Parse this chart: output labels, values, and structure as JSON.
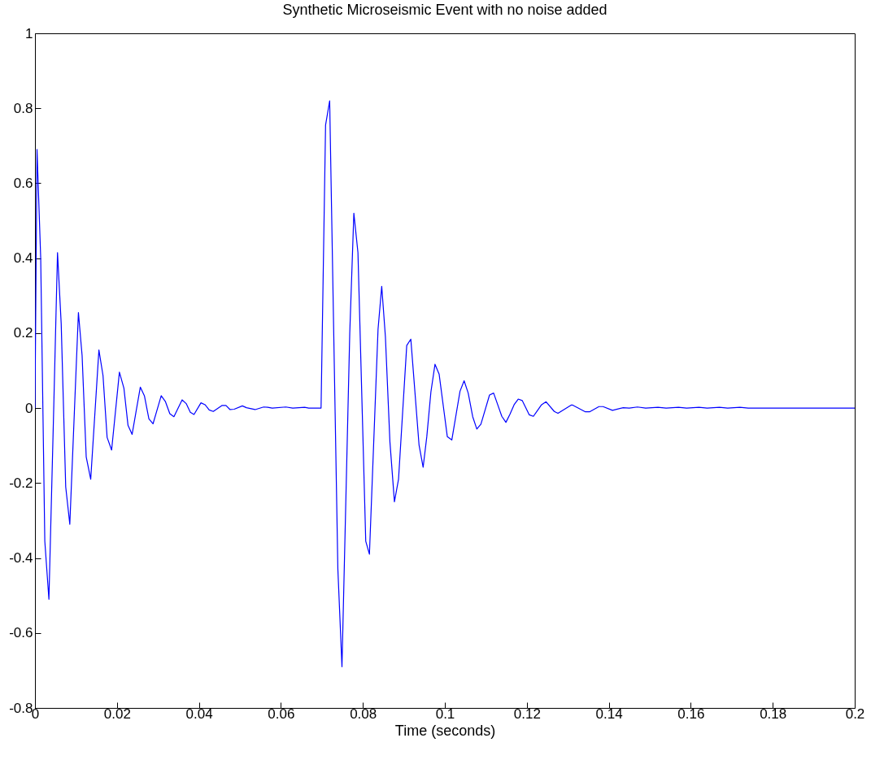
{
  "chart_data": {
    "type": "line",
    "title": "Synthetic Microseismic Event with no noise added",
    "xlabel": "Time (seconds)",
    "x": [
      0,
      0.0005,
      0.0014,
      0.0024,
      0.0034,
      0.0046,
      0.0055,
      0.0064,
      0.0075,
      0.0085,
      0.0106,
      0.0115,
      0.0125,
      0.0136,
      0.0156,
      0.0166,
      0.0176,
      0.0187,
      0.0206,
      0.0217,
      0.0227,
      0.0237,
      0.0257,
      0.0267,
      0.0278,
      0.0288,
      0.0308,
      0.0318,
      0.0329,
      0.0339,
      0.0359,
      0.0369,
      0.0379,
      0.0388,
      0.0405,
      0.0415,
      0.0425,
      0.0435,
      0.0456,
      0.0466,
      0.0476,
      0.0486,
      0.0506,
      0.0516,
      0.0537,
      0.0558,
      0.0568,
      0.0579,
      0.0612,
      0.0629,
      0.0658,
      0.0668,
      0.0698,
      0.0709,
      0.0719,
      0.0739,
      0.0749,
      0.0768,
      0.0778,
      0.0788,
      0.0807,
      0.0816,
      0.0837,
      0.0846,
      0.0855,
      0.0866,
      0.0877,
      0.0887,
      0.0907,
      0.0917,
      0.0937,
      0.0947,
      0.0956,
      0.0966,
      0.0976,
      0.0986,
      0.1006,
      0.1017,
      0.1037,
      0.1047,
      0.1057,
      0.1068,
      0.1078,
      0.1088,
      0.1109,
      0.1119,
      0.1139,
      0.1149,
      0.1159,
      0.1169,
      0.1179,
      0.1189,
      0.1206,
      0.1216,
      0.1236,
      0.1247,
      0.1267,
      0.1276,
      0.1308,
      0.1312,
      0.1343,
      0.1353,
      0.1376,
      0.1386,
      0.1409,
      0.1435,
      0.145,
      0.147,
      0.149,
      0.152,
      0.154,
      0.157,
      0.159,
      0.162,
      0.164,
      0.167,
      0.169,
      0.172,
      0.174,
      0.2
    ],
    "series": [
      {
        "color": "#0000ff",
        "values": [
          0,
          0.69,
          0.4,
          -0.355,
          -0.51,
          0.01,
          0.415,
          0.225,
          -0.21,
          -0.31,
          0.255,
          0.14,
          -0.13,
          -0.19,
          0.155,
          0.087,
          -0.078,
          -0.112,
          0.096,
          0.053,
          -0.046,
          -0.07,
          0.056,
          0.033,
          -0.029,
          -0.042,
          0.033,
          0.018,
          -0.015,
          -0.023,
          0.022,
          0.012,
          -0.011,
          -0.017,
          0.014,
          0.009,
          -0.005,
          -0.009,
          0.007,
          0.007,
          -0.004,
          -0.003,
          0.006,
          0.001,
          -0.004,
          0.003,
          0.002,
          0,
          0.003,
          0,
          0.002,
          0,
          0,
          0.755,
          0.82,
          -0.43,
          -0.69,
          0.2,
          0.52,
          0.415,
          -0.355,
          -0.39,
          0.21,
          0.325,
          0.19,
          -0.09,
          -0.25,
          -0.19,
          0.167,
          0.184,
          -0.098,
          -0.158,
          -0.076,
          0.043,
          0.117,
          0.091,
          -0.076,
          -0.085,
          0.045,
          0.073,
          0.04,
          -0.023,
          -0.056,
          -0.043,
          0.035,
          0.04,
          -0.022,
          -0.038,
          -0.016,
          0.009,
          0.024,
          0.02,
          -0.018,
          -0.022,
          0.009,
          0.017,
          -0.009,
          -0.014,
          0.008,
          0.008,
          -0.01,
          -0.01,
          0.004,
          0.004,
          -0.006,
          0.001,
          0,
          0.003,
          0,
          0.002,
          0,
          0.002,
          0,
          0.002,
          0,
          0.002,
          0,
          0.002,
          0,
          0
        ]
      }
    ],
    "xlim": [
      0,
      0.2
    ],
    "xticks": [
      0,
      0.02,
      0.04,
      0.06,
      0.08,
      0.1,
      0.12,
      0.14,
      0.16,
      0.18,
      0.2
    ],
    "ylim": [
      -0.8,
      1
    ],
    "yticks": [
      -0.8,
      -0.6,
      -0.4,
      -0.2,
      0,
      0.2,
      0.4,
      0.6,
      0.8,
      1
    ]
  }
}
